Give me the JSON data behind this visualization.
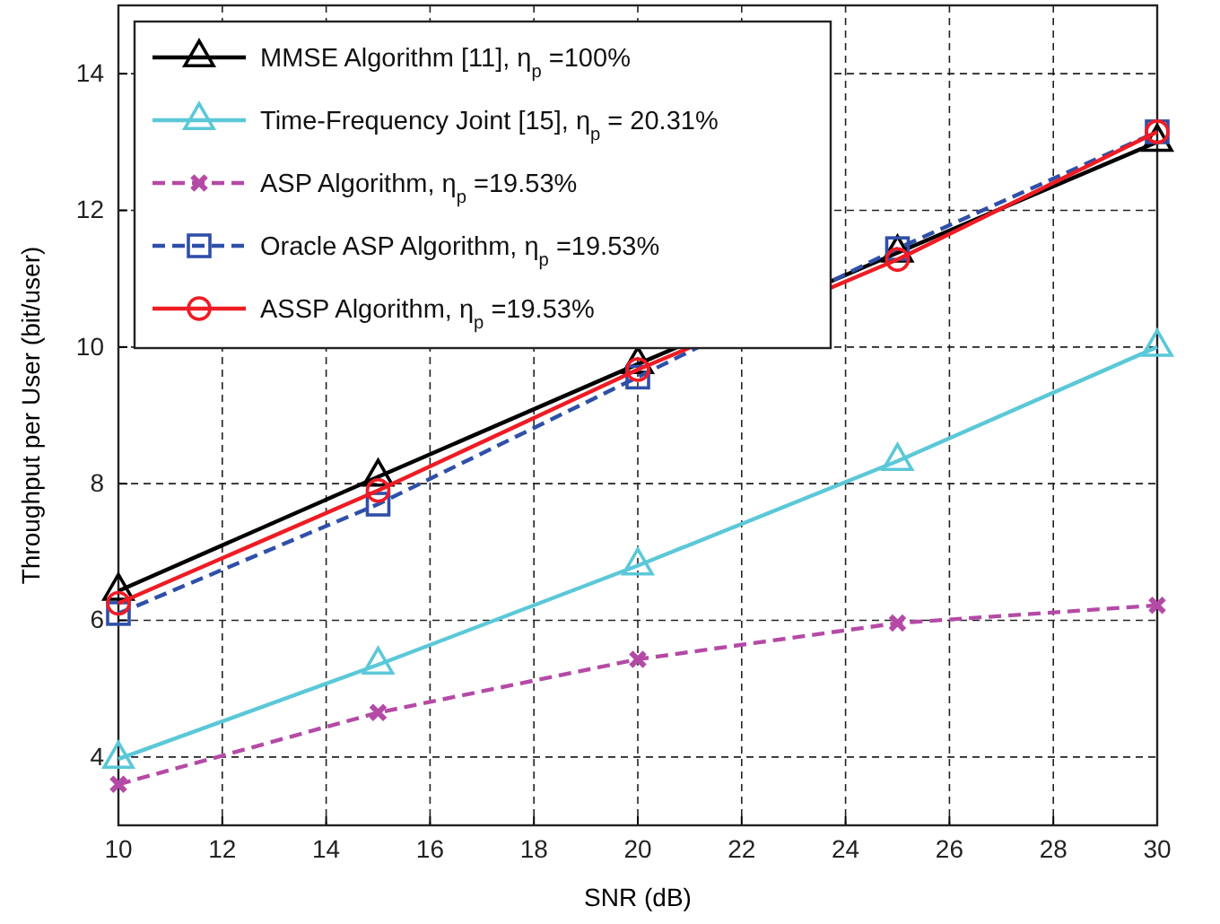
{
  "chart_data": {
    "type": "line",
    "xlabel": "SNR (dB)",
    "ylabel": "Throughput per User (bit/user)",
    "x": [
      10,
      15,
      20,
      25,
      30
    ],
    "series": [
      {
        "name": "MMSE Algorithm [11], η$_{p}$ =100%",
        "color": "#000000",
        "marker": "triangle",
        "line_style": "solid",
        "values": [
          6.43,
          8.1,
          9.75,
          11.38,
          13.0
        ]
      },
      {
        "name": "Time-Frequency Joint [15], η$_{p}$ = 20.31%",
        "color": "#5bc8d8",
        "marker": "triangle",
        "line_style": "solid",
        "values": [
          3.97,
          5.35,
          6.8,
          8.33,
          10.0
        ]
      },
      {
        "name": "ASP Algorithm, η$_{p}$ =19.53%",
        "color": "#b54aa6",
        "marker": "cross",
        "line_style": "dashed",
        "values": [
          3.6,
          4.65,
          5.43,
          5.96,
          6.22
        ]
      },
      {
        "name": "Oracle ASP Algorithm,  η$_{p}$ =19.53%",
        "color": "#2f4fa8",
        "marker": "square",
        "line_style": "dashed",
        "values": [
          6.1,
          7.7,
          9.56,
          11.44,
          13.15
        ]
      },
      {
        "name": "ASSP Algorithm, η$_{p}$ =19.53%",
        "color": "#ee1c24",
        "marker": "circle",
        "line_style": "solid",
        "values": [
          6.25,
          7.9,
          9.67,
          11.28,
          13.15
        ]
      }
    ],
    "xlim": [
      10,
      30
    ],
    "xticks": [
      10,
      12,
      14,
      16,
      18,
      20,
      22,
      24,
      26,
      28,
      30
    ],
    "ylim": [
      3,
      15
    ],
    "yticks": [
      4,
      6,
      8,
      10,
      12,
      14
    ],
    "grid": true,
    "legend": "top left"
  }
}
